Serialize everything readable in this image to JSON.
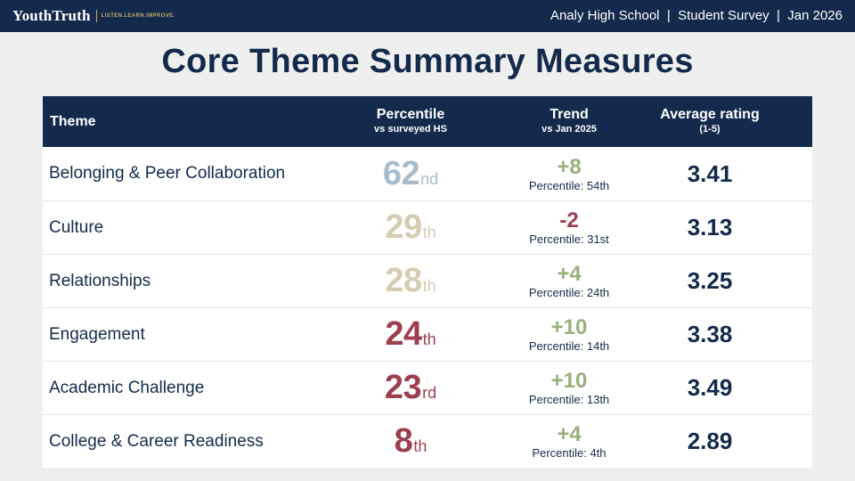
{
  "header": {
    "logo_text": "YouthTruth",
    "logo_tagline": "LISTEN.LEARN.IMPROVE.",
    "school": "Analy High School",
    "survey": "Student Survey",
    "date": "Jan 2026",
    "separator": "|"
  },
  "title": "Core Theme Summary Measures",
  "table": {
    "columns": {
      "theme": "Theme",
      "percentile_label": "Percentile",
      "percentile_sub": "vs surveyed HS",
      "trend_label": "Trend",
      "trend_sub": "vs Jan 2025",
      "avg_label": "Average rating",
      "avg_sub": "(1-5)"
    },
    "rows": [
      {
        "theme": "Belonging & Peer Collaboration",
        "pct": "62",
        "suffix": "nd",
        "trend": "+8",
        "trend_detail": "Percentile: 54th",
        "avg": "3.41"
      },
      {
        "theme": "Culture",
        "pct": "29",
        "suffix": "th",
        "trend": "-2",
        "trend_detail": "Percentile: 31st",
        "avg": "3.13"
      },
      {
        "theme": "Relationships",
        "pct": "28",
        "suffix": "th",
        "trend": "+4",
        "trend_detail": "Percentile: 24th",
        "avg": "3.25"
      },
      {
        "theme": "Engagement",
        "pct": "24",
        "suffix": "th",
        "trend": "+10",
        "trend_detail": "Percentile: 14th",
        "avg": "3.38"
      },
      {
        "theme": "Academic Challenge",
        "pct": "23",
        "suffix": "rd",
        "trend": "+10",
        "trend_detail": "Percentile: 13th",
        "avg": "3.49"
      },
      {
        "theme": "College & Career Readiness",
        "pct": "8",
        "suffix": "th",
        "trend": "+4",
        "trend_detail": "Percentile: 4th",
        "avg": "2.89"
      }
    ]
  },
  "colors": {
    "navy": "#132a4c",
    "pct_high": "#a9bccb",
    "pct_mid": "#d6ccb4",
    "pct_low": "#9c3f4f",
    "trend_up": "#98b07a",
    "trend_down": "#9c3f4f"
  },
  "row_color_keys": [
    {
      "pct": "pct_high",
      "trend": "trend_up"
    },
    {
      "pct": "pct_mid",
      "trend": "trend_down"
    },
    {
      "pct": "pct_mid",
      "trend": "trend_up"
    },
    {
      "pct": "pct_low",
      "trend": "trend_up"
    },
    {
      "pct": "pct_low",
      "trend": "trend_up"
    },
    {
      "pct": "pct_low",
      "trend": "trend_up"
    }
  ]
}
